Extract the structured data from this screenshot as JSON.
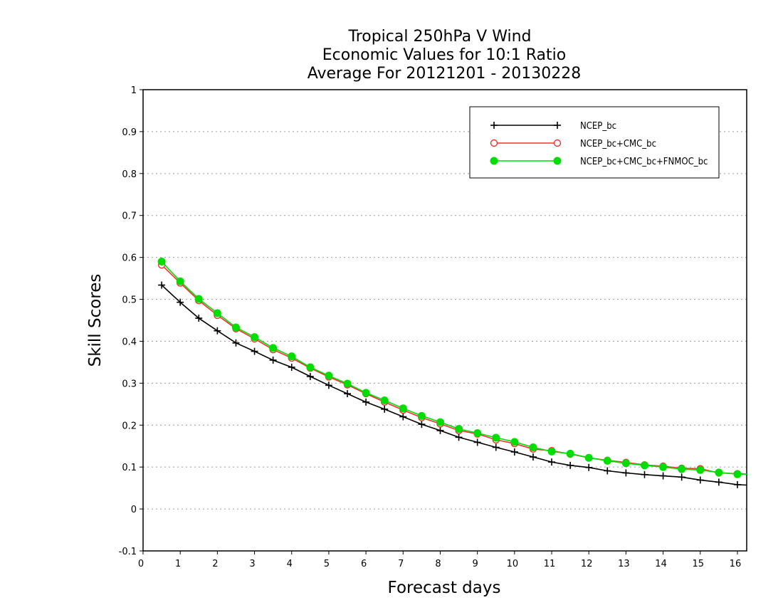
{
  "chart_data": {
    "type": "line",
    "title_lines": [
      "Tropical 250hPa V Wind",
      "Economic Values for 10:1 Ratio",
      "Average For 20121201 - 20130228"
    ],
    "xlabel": "Forecast days",
    "ylabel": "Skill Scores",
    "xlim": [
      0,
      16.25
    ],
    "ylim": [
      -0.1,
      1
    ],
    "x_ticks": [
      0,
      1,
      2,
      3,
      4,
      5,
      6,
      7,
      8,
      9,
      10,
      11,
      12,
      13,
      14,
      15,
      16
    ],
    "x_tick_labels": [
      "0",
      "1",
      "2",
      "3",
      "4",
      "5",
      "6",
      "7",
      "8",
      "9",
      "10",
      "11",
      "12",
      "13",
      "14",
      "15",
      "16"
    ],
    "y_ticks": [
      -0.1,
      0,
      0.1,
      0.2,
      0.3,
      0.4,
      0.5,
      0.6,
      0.7,
      0.8,
      0.9,
      1
    ],
    "y_tick_labels": [
      "-0.1",
      "0",
      "0.1",
      "0.2",
      "0.3",
      "0.4",
      "0.5",
      "0.6",
      "0.7",
      "0.8",
      "0.9",
      "1"
    ],
    "grid": "horizontal dotted",
    "legend_position": "top-right",
    "x": [
      0.5,
      1,
      1.5,
      2,
      2.5,
      3,
      3.5,
      4,
      4.5,
      5,
      5.5,
      6,
      6.5,
      7,
      7.5,
      8,
      8.5,
      9,
      9.5,
      10,
      10.5,
      11,
      11.5,
      12,
      12.5,
      13,
      13.5,
      14,
      14.5,
      15,
      15.5,
      16,
      16.25
    ],
    "series": [
      {
        "name": "NCEP_bc",
        "color": "#000000",
        "marker": "plus",
        "values": [
          0.534,
          0.493,
          0.455,
          0.425,
          0.396,
          0.376,
          0.355,
          0.338,
          0.316,
          0.295,
          0.275,
          0.255,
          0.238,
          0.22,
          0.202,
          0.187,
          0.171,
          0.159,
          0.147,
          0.136,
          0.124,
          0.112,
          0.104,
          0.099,
          0.091,
          0.086,
          0.082,
          0.079,
          0.076,
          0.069,
          0.064,
          0.058,
          0.057
        ]
      },
      {
        "name": "NCEP_bc+CMC_bc",
        "color": "#ee3333",
        "marker": "open-circle",
        "values": [
          0.582,
          0.539,
          0.497,
          0.462,
          0.43,
          0.406,
          0.38,
          0.36,
          0.336,
          0.315,
          0.296,
          0.275,
          0.255,
          0.236,
          0.218,
          0.203,
          0.187,
          0.179,
          0.165,
          0.156,
          0.143,
          0.139,
          0.131,
          0.122,
          0.116,
          0.111,
          0.105,
          0.102,
          0.097,
          0.096,
          0.086,
          0.084,
          0.083
        ]
      },
      {
        "name": "NCEP_bc+CMC_bc+FNMOC_bc",
        "color": "#00dd00",
        "marker": "filled-circle",
        "values": [
          0.59,
          0.543,
          0.501,
          0.467,
          0.433,
          0.41,
          0.384,
          0.364,
          0.338,
          0.318,
          0.299,
          0.277,
          0.259,
          0.24,
          0.222,
          0.207,
          0.191,
          0.181,
          0.17,
          0.16,
          0.147,
          0.137,
          0.132,
          0.122,
          0.115,
          0.109,
          0.104,
          0.1,
          0.095,
          0.093,
          0.087,
          0.083,
          0.083
        ]
      }
    ]
  }
}
